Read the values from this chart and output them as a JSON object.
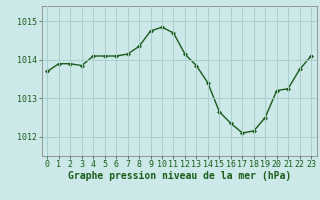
{
  "x": [
    0,
    1,
    2,
    3,
    4,
    5,
    6,
    7,
    8,
    9,
    10,
    11,
    12,
    13,
    14,
    15,
    16,
    17,
    18,
    19,
    20,
    21,
    22,
    23
  ],
  "y": [
    1013.7,
    1013.9,
    1013.9,
    1013.85,
    1014.1,
    1014.1,
    1014.1,
    1014.15,
    1014.35,
    1014.75,
    1014.85,
    1014.7,
    1014.15,
    1013.85,
    1013.4,
    1012.65,
    1012.35,
    1012.1,
    1012.15,
    1012.5,
    1013.2,
    1013.25,
    1013.75,
    1014.1
  ],
  "line_color": "#1a5c1a",
  "marker": "D",
  "markersize": 2.0,
  "linewidth": 1.0,
  "bg_color": "#cce8e8",
  "grid_color": "#aacece",
  "xlabel": "Graphe pression niveau de la mer (hPa)",
  "xlabel_fontsize": 7,
  "tick_fontsize": 6,
  "yticks": [
    1012,
    1013,
    1014,
    1015
  ],
  "ylim": [
    1011.5,
    1015.4
  ],
  "xlim": [
    -0.5,
    23.5
  ]
}
